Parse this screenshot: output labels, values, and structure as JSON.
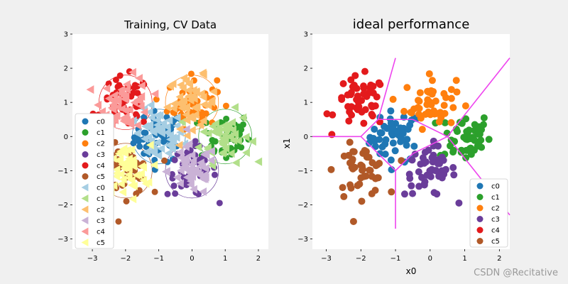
{
  "colors": {
    "c0": "#1f77b4",
    "c1": "#2ca02c",
    "c2": "#ff7f0e",
    "c3": "#6a3d9a",
    "c4": "#e31a1c",
    "c5": "#b15928",
    "c0_light": "#a6cee3",
    "c1_light": "#b2df8a",
    "c2_light": "#fdbf6f",
    "c3_light": "#cab2d6",
    "c4_light": "#fb9a99",
    "c5_light": "#ffff99",
    "boundary": "#ee44ee",
    "axes_bg": "#ffffff"
  },
  "watermark": "CSDN @Recitative",
  "chart_data": [
    {
      "type": "scatter",
      "title": "Training, CV Data",
      "xlabel": "",
      "ylabel": "",
      "xlim": [
        -3.6,
        2.3
      ],
      "ylim": [
        -3.3,
        3.0
      ],
      "xticks": [
        -3,
        -2,
        -1,
        0,
        1,
        2
      ],
      "yticks": [
        -3,
        -2,
        -1,
        0,
        1,
        2,
        3
      ],
      "legend_location": "lower-left",
      "legend": [
        "c0",
        "c1",
        "c2",
        "c3",
        "c4",
        "c5",
        "c0",
        "c1",
        "c2",
        "c3",
        "c4",
        "c5"
      ],
      "class_centers": [
        {
          "class": "c0",
          "x": -1.0,
          "y": 0.0
        },
        {
          "class": "c1",
          "x": 1.0,
          "y": 0.0
        },
        {
          "class": "c2",
          "x": 0.0,
          "y": 1.0
        },
        {
          "class": "c3",
          "x": 0.0,
          "y": -1.0
        },
        {
          "class": "c4",
          "x": -2.0,
          "y": 1.0
        },
        {
          "class": "c5",
          "x": -2.0,
          "y": -1.0
        }
      ],
      "circle_radius": 0.8,
      "series": [
        {
          "name": "c0",
          "marker": "circle",
          "set": "training"
        },
        {
          "name": "c1",
          "marker": "circle",
          "set": "training"
        },
        {
          "name": "c2",
          "marker": "circle",
          "set": "training"
        },
        {
          "name": "c3",
          "marker": "circle",
          "set": "training"
        },
        {
          "name": "c4",
          "marker": "circle",
          "set": "training"
        },
        {
          "name": "c5",
          "marker": "circle",
          "set": "training"
        },
        {
          "name": "c0",
          "marker": "triangle-left",
          "set": "cv"
        },
        {
          "name": "c1",
          "marker": "triangle-left",
          "set": "cv"
        },
        {
          "name": "c2",
          "marker": "triangle-left",
          "set": "cv"
        },
        {
          "name": "c3",
          "marker": "triangle-left",
          "set": "cv"
        },
        {
          "name": "c4",
          "marker": "triangle-left",
          "set": "cv"
        },
        {
          "name": "c5",
          "marker": "triangle-left",
          "set": "cv"
        }
      ]
    },
    {
      "type": "scatter",
      "title": "ideal performance",
      "xlabel": "x0",
      "ylabel": "x1",
      "xlim": [
        -3.4,
        2.3
      ],
      "ylim": [
        -3.3,
        3.0
      ],
      "xticks": [
        -3,
        -2,
        -1,
        0,
        1,
        2
      ],
      "yticks": [
        -3,
        -2,
        -1,
        0,
        1,
        2,
        3
      ],
      "legend_location": "lower-right",
      "legend": [
        "c0",
        "c1",
        "c2",
        "c3",
        "c4",
        "c5"
      ],
      "class_centers": [
        {
          "class": "c0",
          "x": -1.0,
          "y": 0.0
        },
        {
          "class": "c1",
          "x": 1.0,
          "y": 0.0
        },
        {
          "class": "c2",
          "x": 0.0,
          "y": 1.0
        },
        {
          "class": "c3",
          "x": 0.0,
          "y": -1.0
        },
        {
          "class": "c4",
          "x": -2.0,
          "y": 1.0
        },
        {
          "class": "c5",
          "x": -2.0,
          "y": -1.0
        }
      ],
      "boundaries": [
        [
          [
            -3.4,
            0.0
          ],
          [
            -2.0,
            0.0
          ]
        ],
        [
          [
            -2.0,
            0.0
          ],
          [
            -1.5,
            0.5
          ]
        ],
        [
          [
            -1.5,
            0.5
          ],
          [
            -1.0,
            2.3
          ]
        ],
        [
          [
            -1.5,
            0.5
          ],
          [
            -0.5,
            0.5
          ]
        ],
        [
          [
            -0.5,
            0.5
          ],
          [
            0.5,
            0.0
          ]
        ],
        [
          [
            0.5,
            0.0
          ],
          [
            2.3,
            2.3
          ]
        ],
        [
          [
            0.5,
            0.0
          ],
          [
            2.3,
            -2.3
          ]
        ],
        [
          [
            -2.0,
            0.0
          ],
          [
            -1.0,
            -1.0
          ]
        ],
        [
          [
            -1.0,
            -1.0
          ],
          [
            -1.0,
            -2.7
          ]
        ],
        [
          [
            -1.0,
            -1.0
          ],
          [
            -0.5,
            -0.5
          ]
        ],
        [
          [
            -0.5,
            -0.5
          ],
          [
            0.5,
            0.0
          ]
        ]
      ],
      "series": [
        {
          "name": "c0",
          "marker": "circle"
        },
        {
          "name": "c1",
          "marker": "circle"
        },
        {
          "name": "c2",
          "marker": "circle"
        },
        {
          "name": "c3",
          "marker": "circle"
        },
        {
          "name": "c4",
          "marker": "circle"
        },
        {
          "name": "c5",
          "marker": "circle"
        }
      ]
    }
  ]
}
